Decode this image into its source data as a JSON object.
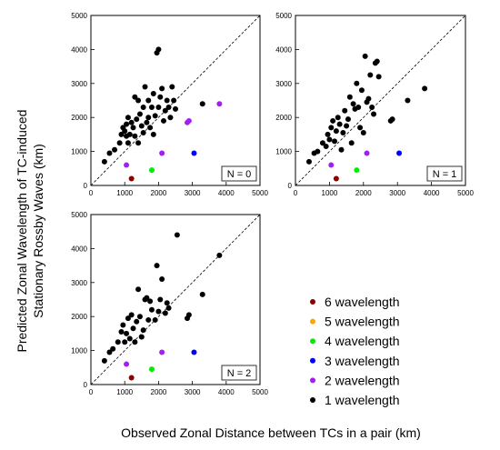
{
  "figure": {
    "ylabel_lines": [
      "Predicted Zonal Wavelength of TC-induced",
      "Stationary Rossby Waves (km)"
    ],
    "xlabel": "Observed Zonal Distance between TCs in a pair (km)"
  },
  "legend": {
    "entries": [
      {
        "label": "6 wavelength",
        "color": "#8b0000"
      },
      {
        "label": "5 wavelength",
        "color": "#ffa500"
      },
      {
        "label": "4 wavelength",
        "color": "#00ee00"
      },
      {
        "label": "3 wavelength",
        "color": "#0000ff"
      },
      {
        "label": "2 wavelength",
        "color": "#a020f0"
      },
      {
        "label": "1 wavelength",
        "color": "#000000"
      }
    ]
  },
  "chart_data": [
    {
      "type": "scatter",
      "panel_label": "N = 0",
      "xlim": [
        0,
        5000
      ],
      "ylim": [
        0,
        5000
      ],
      "xticks": [
        "0",
        "1000",
        "2000",
        "3000",
        "4000",
        "5000"
      ],
      "yticks": [
        "0",
        "1000",
        "2000",
        "3000",
        "4000",
        "5000"
      ],
      "reference_line": "y = x",
      "series": [
        {
          "name": "6 wavelength",
          "color": "#8b0000",
          "points": [
            [
              1200,
              200
            ]
          ]
        },
        {
          "name": "4 wavelength",
          "color": "#00ee00",
          "points": [
            [
              1800,
              450
            ]
          ]
        },
        {
          "name": "3 wavelength",
          "color": "#0000ff",
          "points": [
            [
              3050,
              950
            ]
          ]
        },
        {
          "name": "2 wavelength",
          "color": "#a020f0",
          "points": [
            [
              1050,
              600
            ],
            [
              2100,
              950
            ],
            [
              2850,
              1850
            ],
            [
              2900,
              1900
            ],
            [
              3800,
              2400
            ]
          ]
        },
        {
          "name": "1 wavelength",
          "color": "#000000",
          "points": [
            [
              400,
              700
            ],
            [
              550,
              950
            ],
            [
              700,
              1050
            ],
            [
              850,
              1250
            ],
            [
              900,
              1500
            ],
            [
              950,
              1700
            ],
            [
              1000,
              1600
            ],
            [
              1050,
              1450
            ],
            [
              1050,
              1800
            ],
            [
              1100,
              1250
            ],
            [
              1100,
              2000
            ],
            [
              1150,
              1500
            ],
            [
              1200,
              1850
            ],
            [
              1250,
              1700
            ],
            [
              1300,
              1450
            ],
            [
              1300,
              2600
            ],
            [
              1350,
              1950
            ],
            [
              1400,
              1250
            ],
            [
              1400,
              2500
            ],
            [
              1450,
              2100
            ],
            [
              1500,
              1750
            ],
            [
              1550,
              1550
            ],
            [
              1550,
              2300
            ],
            [
              1600,
              2900
            ],
            [
              1650,
              1850
            ],
            [
              1700,
              2000
            ],
            [
              1700,
              2500
            ],
            [
              1750,
              1700
            ],
            [
              1800,
              2300
            ],
            [
              1850,
              1500
            ],
            [
              1850,
              2700
            ],
            [
              1900,
              2050
            ],
            [
              1950,
              3900
            ],
            [
              2000,
              4000
            ],
            [
              2000,
              2300
            ],
            [
              2050,
              2600
            ],
            [
              2100,
              2850
            ],
            [
              2150,
              1900
            ],
            [
              2200,
              2200
            ],
            [
              2250,
              2500
            ],
            [
              2300,
              2300
            ],
            [
              2350,
              2000
            ],
            [
              2400,
              2900
            ],
            [
              2450,
              2500
            ],
            [
              2500,
              2250
            ],
            [
              3300,
              2400
            ]
          ]
        }
      ]
    },
    {
      "type": "scatter",
      "panel_label": "N = 1",
      "xlim": [
        0,
        5000
      ],
      "ylim": [
        0,
        5000
      ],
      "xticks": [
        "0",
        "1000",
        "2000",
        "3000",
        "4000",
        "5000"
      ],
      "yticks": [
        "0",
        "1000",
        "2000",
        "3000",
        "4000",
        "5000"
      ],
      "reference_line": "y = x",
      "series": [
        {
          "name": "6 wavelength",
          "color": "#8b0000",
          "points": [
            [
              1200,
              200
            ]
          ]
        },
        {
          "name": "4 wavelength",
          "color": "#00ee00",
          "points": [
            [
              1800,
              450
            ]
          ]
        },
        {
          "name": "3 wavelength",
          "color": "#0000ff",
          "points": [
            [
              3050,
              950
            ]
          ]
        },
        {
          "name": "2 wavelength",
          "color": "#a020f0",
          "points": [
            [
              1050,
              600
            ],
            [
              2100,
              950
            ]
          ]
        },
        {
          "name": "1 wavelength",
          "color": "#000000",
          "points": [
            [
              400,
              700
            ],
            [
              550,
              950
            ],
            [
              650,
              1000
            ],
            [
              800,
              1250
            ],
            [
              900,
              1150
            ],
            [
              950,
              1500
            ],
            [
              1000,
              1350
            ],
            [
              1050,
              1700
            ],
            [
              1100,
              1900
            ],
            [
              1150,
              1300
            ],
            [
              1200,
              1600
            ],
            [
              1250,
              2000
            ],
            [
              1300,
              1800
            ],
            [
              1350,
              1050
            ],
            [
              1400,
              1550
            ],
            [
              1450,
              2200
            ],
            [
              1500,
              1750
            ],
            [
              1550,
              1950
            ],
            [
              1600,
              2600
            ],
            [
              1650,
              1250
            ],
            [
              1700,
              2400
            ],
            [
              1750,
              2250
            ],
            [
              1800,
              3000
            ],
            [
              1850,
              2300
            ],
            [
              1900,
              1700
            ],
            [
              1950,
              2800
            ],
            [
              2000,
              1550
            ],
            [
              2050,
              3800
            ],
            [
              2100,
              2450
            ],
            [
              2150,
              2550
            ],
            [
              2200,
              3250
            ],
            [
              2250,
              2300
            ],
            [
              2300,
              2100
            ],
            [
              2350,
              3600
            ],
            [
              2400,
              3650
            ],
            [
              2450,
              3200
            ],
            [
              2800,
              1900
            ],
            [
              2850,
              1950
            ],
            [
              3300,
              2500
            ],
            [
              3800,
              2850
            ]
          ]
        }
      ]
    },
    {
      "type": "scatter",
      "panel_label": "N = 2",
      "xlim": [
        0,
        5000
      ],
      "ylim": [
        0,
        5000
      ],
      "xticks": [
        "0",
        "1000",
        "2000",
        "3000",
        "4000",
        "5000"
      ],
      "yticks": [
        "0",
        "1000",
        "2000",
        "3000",
        "4000",
        "5000"
      ],
      "reference_line": "y = x",
      "series": [
        {
          "name": "6 wavelength",
          "color": "#8b0000",
          "points": [
            [
              1200,
              200
            ]
          ]
        },
        {
          "name": "4 wavelength",
          "color": "#00ee00",
          "points": [
            [
              1800,
              450
            ]
          ]
        },
        {
          "name": "3 wavelength",
          "color": "#0000ff",
          "points": [
            [
              3050,
              950
            ]
          ]
        },
        {
          "name": "2 wavelength",
          "color": "#a020f0",
          "points": [
            [
              1050,
              600
            ],
            [
              2100,
              950
            ]
          ]
        },
        {
          "name": "1 wavelength",
          "color": "#000000",
          "points": [
            [
              400,
              700
            ],
            [
              550,
              950
            ],
            [
              650,
              1050
            ],
            [
              800,
              1250
            ],
            [
              900,
              1550
            ],
            [
              950,
              1750
            ],
            [
              1000,
              1250
            ],
            [
              1050,
              1500
            ],
            [
              1100,
              1950
            ],
            [
              1150,
              1350
            ],
            [
              1200,
              2050
            ],
            [
              1250,
              1650
            ],
            [
              1300,
              1250
            ],
            [
              1350,
              1850
            ],
            [
              1400,
              2800
            ],
            [
              1450,
              2000
            ],
            [
              1500,
              1400
            ],
            [
              1550,
              1600
            ],
            [
              1600,
              2500
            ],
            [
              1650,
              2550
            ],
            [
              1700,
              1900
            ],
            [
              1750,
              2450
            ],
            [
              1800,
              2200
            ],
            [
              1900,
              1900
            ],
            [
              1950,
              3500
            ],
            [
              2000,
              2150
            ],
            [
              2050,
              2500
            ],
            [
              2100,
              3100
            ],
            [
              2200,
              2100
            ],
            [
              2250,
              2400
            ],
            [
              2300,
              2250
            ],
            [
              2550,
              4400
            ],
            [
              2850,
              1950
            ],
            [
              2900,
              2050
            ],
            [
              3300,
              2650
            ],
            [
              3800,
              3800
            ]
          ]
        }
      ]
    }
  ]
}
